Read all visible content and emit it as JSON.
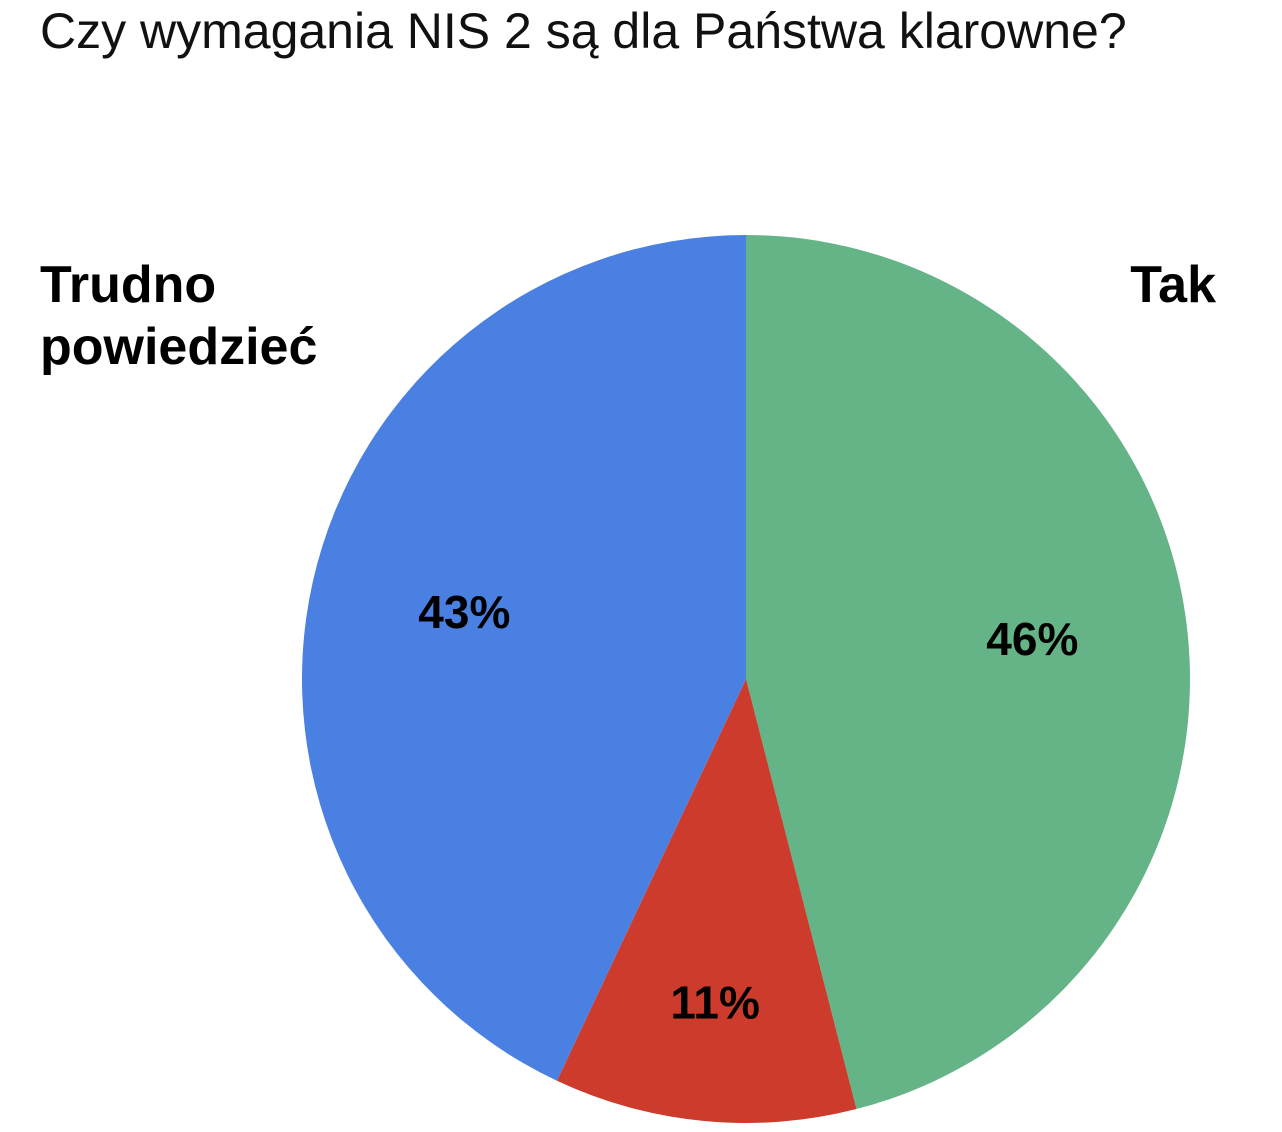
{
  "chart_data": {
    "type": "pie",
    "title": "Czy wymagania NIS 2 są dla Państwa klarowne?",
    "categories": [
      "Tak",
      null,
      "Trudno powiedzieć"
    ],
    "values": [
      46,
      11,
      43
    ],
    "value_labels": [
      "46%",
      "11%",
      "43%"
    ],
    "colors": [
      "#64b487",
      "#cc3b2b",
      "#4a80e2"
    ]
  }
}
